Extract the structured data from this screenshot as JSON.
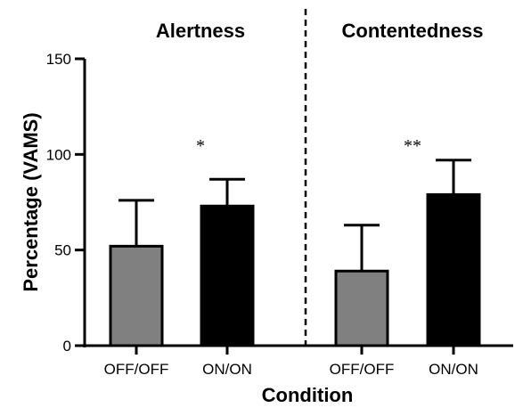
{
  "chart_data": {
    "type": "bar",
    "xlabel": "Condition",
    "ylabel": "Percentage (VAMS)",
    "ylim": [
      0,
      150
    ],
    "yticks": [
      0,
      50,
      100,
      150
    ],
    "panels": [
      {
        "title": "Alertness",
        "significance": "*",
        "bars": [
          {
            "category": "OFF/OFF",
            "value": 52,
            "error": 24,
            "color": "#808080"
          },
          {
            "category": "ON/ON",
            "value": 73,
            "error": 14,
            "color": "#000000"
          }
        ]
      },
      {
        "title": "Contentedness",
        "significance": "**",
        "bars": [
          {
            "category": "OFF/OFF",
            "value": 39,
            "error": 24,
            "color": "#808080"
          },
          {
            "category": "ON/ON",
            "value": 79,
            "error": 18,
            "color": "#000000"
          }
        ]
      }
    ]
  }
}
